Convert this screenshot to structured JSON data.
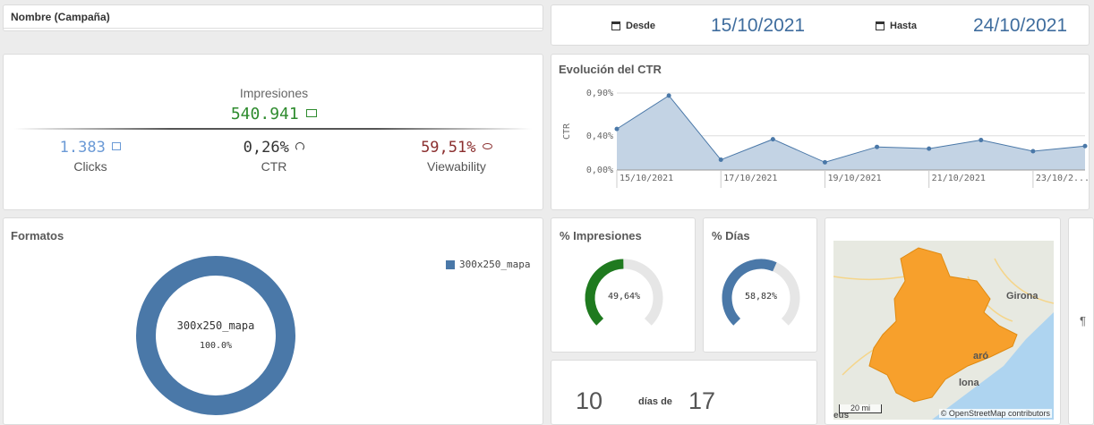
{
  "filter": {
    "label": "Nombre (Campaña)"
  },
  "dates": {
    "from_label": "Desde",
    "from_value": "15/10/2021",
    "to_label": "Hasta",
    "to_value": "24/10/2021"
  },
  "kpi": {
    "impressions_label": "Impresiones",
    "impressions_value": "540.941",
    "clicks_value": "1.383",
    "clicks_label": "Clicks",
    "ctr_value": "0,26%",
    "ctr_label": "CTR",
    "view_value": "59,51%",
    "view_label": "Viewability",
    "colors": {
      "impressions": "#2e8b2e",
      "clicks": "#6b9ad6",
      "ctr": "#333333",
      "view": "#8b2f2f"
    }
  },
  "ctr_chart": {
    "title": "Evolución del CTR",
    "chart_data": {
      "type": "area",
      "ylabel": "CTR",
      "yticks": [
        "0,90%",
        "0,40%",
        "0,00%"
      ],
      "ylim": [
        0,
        0.9
      ],
      "x_ticks": [
        "15/10/2021",
        "17/10/2021",
        "19/10/2021",
        "21/10/2021",
        "23/10/2..."
      ],
      "values": [
        0.48,
        0.87,
        0.12,
        0.36,
        0.09,
        0.27,
        0.25,
        0.35,
        0.22,
        0.28
      ],
      "color": "#4a78a8",
      "fill": "#c3d3e4"
    }
  },
  "formatos": {
    "title": "Formatos",
    "legend": "300x250_mapa",
    "center_label": "300x250_mapa",
    "center_pct": "100.0%",
    "chart_data": {
      "type": "pie",
      "categories": [
        "300x250_mapa"
      ],
      "values": [
        100.0
      ],
      "color": "#4a78a8"
    }
  },
  "pct_impresiones": {
    "title": "% Impresiones",
    "value_label": "49,64%",
    "value": 49.64,
    "color": "#1f7a1f"
  },
  "pct_dias": {
    "title": "% Días",
    "value_label": "58,82%",
    "value": 58.82,
    "color": "#4a78a8"
  },
  "days": {
    "current": "10",
    "connector": "días de",
    "total": "17"
  },
  "map": {
    "city1": "Girona",
    "city2": "aró",
    "city3": "lona",
    "city4": "eus",
    "scale": "20 mi",
    "attribution": "© OpenStreetMap contributors"
  },
  "extra_panel": {
    "glyph": "¶"
  }
}
